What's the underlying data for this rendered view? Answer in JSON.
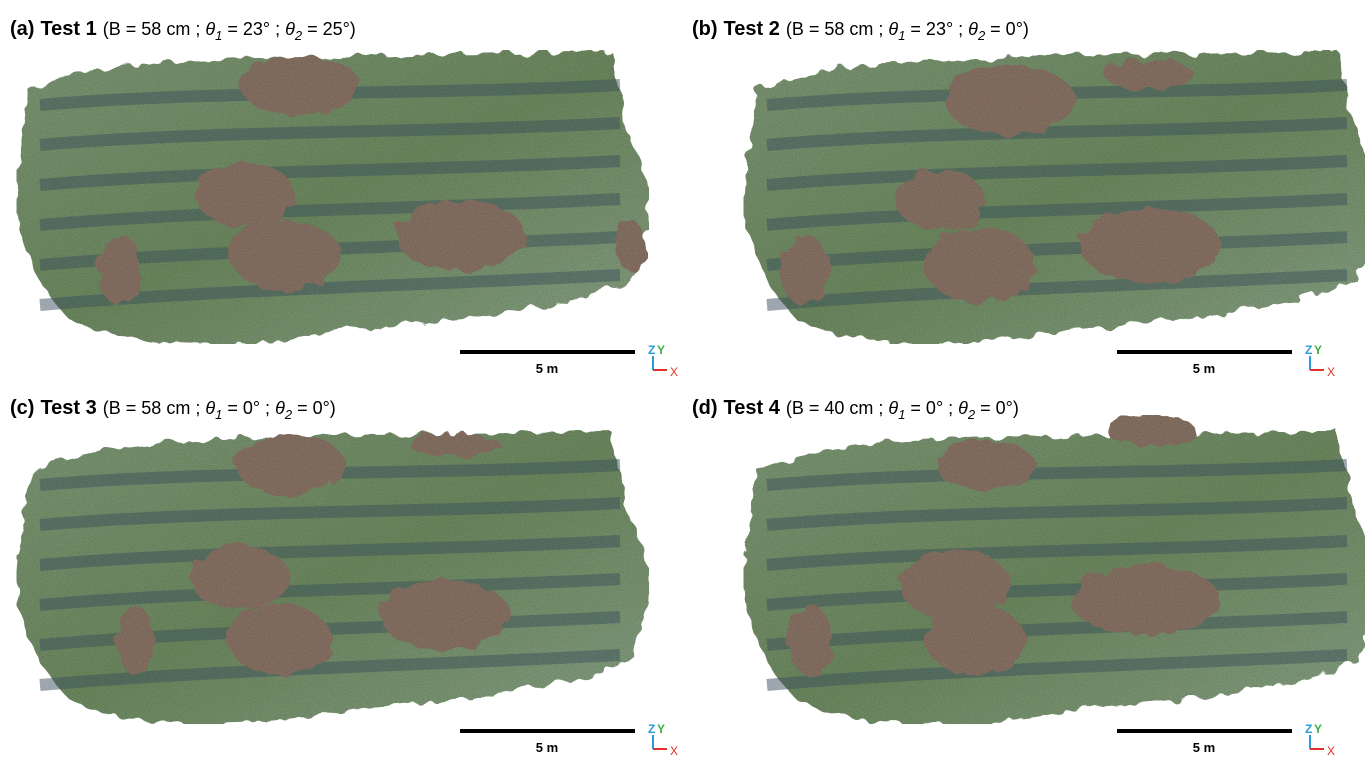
{
  "panels": [
    {
      "label": "(a)",
      "test": "Test 1",
      "params": [
        "(B = 58 cm ; ",
        "θ",
        "1",
        " = 23° ; ",
        "θ",
        "2",
        " = 25°)"
      ],
      "scale": "5 m",
      "axes": {
        "z": "Z",
        "y": "Y",
        "x": "X"
      }
    },
    {
      "label": "(b)",
      "test": "Test 2",
      "params": [
        "(B = 58 cm ; ",
        "θ",
        "1",
        " = 23° ; ",
        "θ",
        "2",
        " = 0°)"
      ],
      "scale": "5 m",
      "axes": {
        "z": "Z",
        "y": "Y",
        "x": "X"
      }
    },
    {
      "label": "(c)",
      "test": "Test 3",
      "params": [
        "(B = 58 cm ; ",
        "θ",
        "1",
        " = 0° ; ",
        "θ",
        "2",
        " = 0°)"
      ],
      "scale": "5 m",
      "axes": {
        "z": "Z",
        "y": "Y",
        "x": "X"
      }
    },
    {
      "label": "(d)",
      "test": "Test 4",
      "params": [
        "(B = 40 cm ; ",
        "θ",
        "1",
        " = 0° ; ",
        "θ",
        "2",
        " = 0°)"
      ],
      "scale": "5 m",
      "axes": {
        "z": "Z",
        "y": "Y",
        "x": "X"
      }
    }
  ]
}
